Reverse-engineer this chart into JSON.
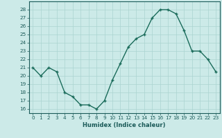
{
  "x": [
    0,
    1,
    2,
    3,
    4,
    5,
    6,
    7,
    8,
    9,
    10,
    11,
    12,
    13,
    14,
    15,
    16,
    17,
    18,
    19,
    20,
    21,
    22,
    23
  ],
  "y": [
    21,
    20,
    21,
    20.5,
    18,
    17.5,
    16.5,
    16.5,
    16,
    17,
    19.5,
    21.5,
    23.5,
    24.5,
    25,
    27,
    28,
    28,
    27.5,
    25.5,
    23,
    23,
    22,
    20.5
  ],
  "line_color": "#1a6b5a",
  "marker_color": "#1a6b5a",
  "bg_color": "#cceae8",
  "grid_color": "#aad4d0",
  "xlabel": "Humidex (Indice chaleur)",
  "xlim": [
    -0.5,
    23.5
  ],
  "ylim": [
    15.5,
    29
  ],
  "yticks": [
    16,
    17,
    18,
    19,
    20,
    21,
    22,
    23,
    24,
    25,
    26,
    27,
    28
  ],
  "xticks": [
    0,
    1,
    2,
    3,
    4,
    5,
    6,
    7,
    8,
    9,
    10,
    11,
    12,
    13,
    14,
    15,
    16,
    17,
    18,
    19,
    20,
    21,
    22,
    23
  ],
  "xtick_labels": [
    "0",
    "1",
    "2",
    "3",
    "4",
    "5",
    "6",
    "7",
    "8",
    "9",
    "10",
    "11",
    "12",
    "13",
    "14",
    "15",
    "16",
    "17",
    "18",
    "19",
    "20",
    "21",
    "22",
    "23"
  ],
  "marker_size": 2.5,
  "line_width": 1.0
}
